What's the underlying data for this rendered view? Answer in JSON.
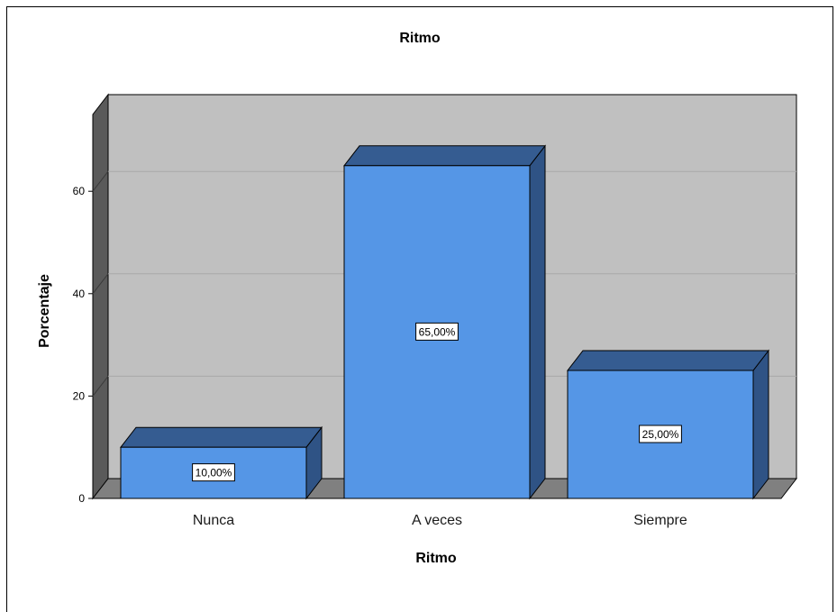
{
  "chart_data": {
    "type": "bar",
    "title": "Ritmo",
    "xlabel": "Ritmo",
    "ylabel": "Porcentaje",
    "categories": [
      "Nunca",
      "A veces",
      "Siempre"
    ],
    "values": [
      10,
      65,
      25
    ],
    "data_labels": [
      "10,00%",
      "65,00%",
      "25,00%"
    ],
    "y_ticks": [
      0,
      20,
      40,
      60
    ],
    "ylim": [
      0,
      75
    ],
    "grid": true,
    "three_d": true
  },
  "colors": {
    "bar_front": "#5596e6",
    "bar_top": "#355c91",
    "bar_side": "#2f5385",
    "back_wall": "#c0c0c0",
    "side_wall": "#5a5a5a",
    "floor": "#808080",
    "gridline": "#a8a8a8"
  }
}
